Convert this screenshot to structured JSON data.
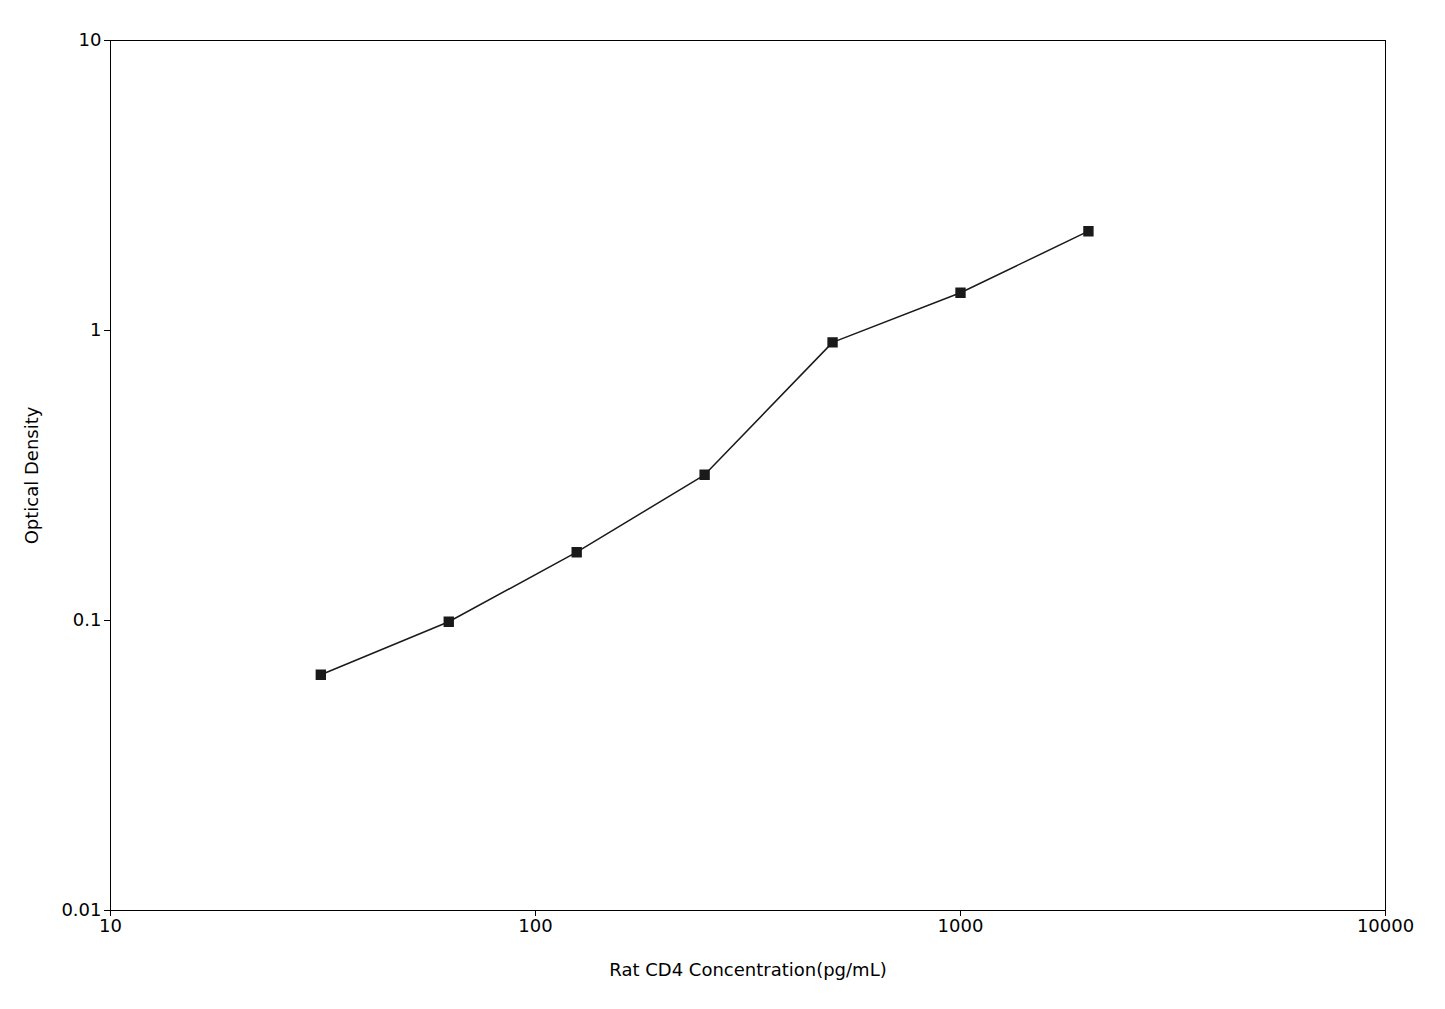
{
  "chart_data": {
    "type": "line",
    "x": [
      31.25,
      62.5,
      125,
      250,
      500,
      1000,
      2000
    ],
    "values": [
      0.065,
      0.099,
      0.172,
      0.318,
      0.91,
      1.35,
      2.2
    ],
    "xlabel": "Rat CD4 Concentration(pg/mL)",
    "ylabel": "Optical Density",
    "xlim": [
      10,
      10000
    ],
    "ylim": [
      0.01,
      10
    ],
    "xticks": [
      10,
      100,
      1000,
      10000
    ],
    "yticks": [
      0.01,
      0.1,
      1,
      10
    ],
    "log": true,
    "grid": false,
    "color": "#1a1a1a",
    "marker": "square"
  }
}
